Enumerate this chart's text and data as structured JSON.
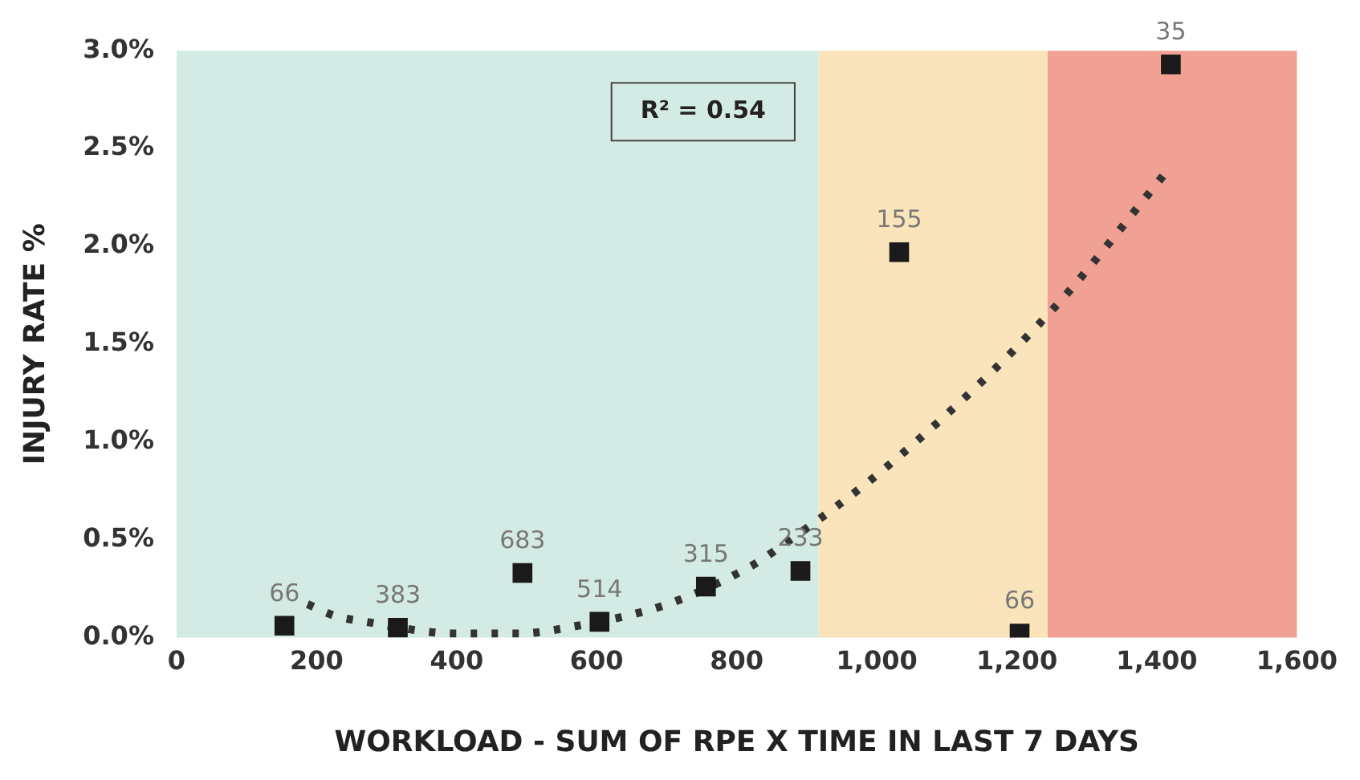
{
  "chart_data": {
    "type": "scatter",
    "xlabel": "WORKLOAD - SUM OF RPE X TIME IN LAST 7 DAYS",
    "ylabel": "INJURY RATE %",
    "annotations": [
      "R² = 0.54",
      {
        "text": "66",
        "x": 154,
        "y": 0.06
      },
      {
        "text": "383",
        "x": 316,
        "y": 0.05
      },
      {
        "text": "683",
        "x": 494,
        "y": 0.33
      },
      {
        "text": "514",
        "x": 604,
        "y": 0.08
      },
      {
        "text": "315",
        "x": 756,
        "y": 0.26
      },
      {
        "text": "233",
        "x": 891,
        "y": 0.34
      },
      {
        "text": "155",
        "x": 1032,
        "y": 1.97
      },
      {
        "text": "66",
        "x": 1204,
        "y": 0.02
      },
      {
        "text": "35",
        "x": 1420,
        "y": 2.93
      }
    ],
    "xlim": [
      0,
      1600
    ],
    "xticks": [
      0,
      200,
      400,
      600,
      800,
      {
        "value": 1000,
        "label": "1,000"
      },
      {
        "value": 1200,
        "label": "1,200"
      },
      {
        "value": 1400,
        "label": "1,400"
      },
      {
        "value": 1600,
        "label": "1,600"
      }
    ],
    "ylim": [
      0,
      3
    ],
    "yticks": [
      {
        "value": 0,
        "label": "0.0%"
      },
      {
        "value": 0.5,
        "label": "0.5%"
      },
      {
        "value": 1,
        "label": "1.0%"
      },
      {
        "value": 1.5,
        "label": "1.5%"
      },
      {
        "value": 2,
        "label": "2.0%"
      },
      {
        "value": 2.5,
        "label": "2.5%"
      },
      {
        "value": 3,
        "label": "3.0%"
      }
    ],
    "grid": false,
    "legend": false,
    "bands": [
      {
        "axis": "x",
        "from": 0,
        "to": 917,
        "color": "#d4ebe5"
      },
      {
        "axis": "x",
        "from": 917,
        "to": 1244,
        "color": "#fae4bb"
      },
      {
        "axis": "x",
        "from": 1244,
        "to": 1600,
        "color": "#f1a194"
      }
    ],
    "series": [
      {
        "color": "#1a1a1a",
        "marker": "square",
        "x": [
          154,
          316,
          494,
          604,
          756,
          891,
          1032,
          1204,
          1420
        ],
        "values": [
          0.06,
          0.05,
          0.33,
          0.08,
          0.26,
          0.34,
          1.97,
          0.02,
          2.93
        ]
      },
      {
        "type": "line",
        "color": "#333333",
        "line_style": "dotted",
        "marker": "none",
        "x": [
          187,
          227,
          271,
          399,
          487,
          573,
          701,
          818,
          853,
          1030,
          1252,
          1418
        ],
        "values": [
          0.17,
          0.11,
          0.08,
          0.02,
          0.02,
          0.06,
          0.17,
          0.36,
          0.44,
          0.92,
          1.68,
          2.4
        ]
      }
    ]
  }
}
